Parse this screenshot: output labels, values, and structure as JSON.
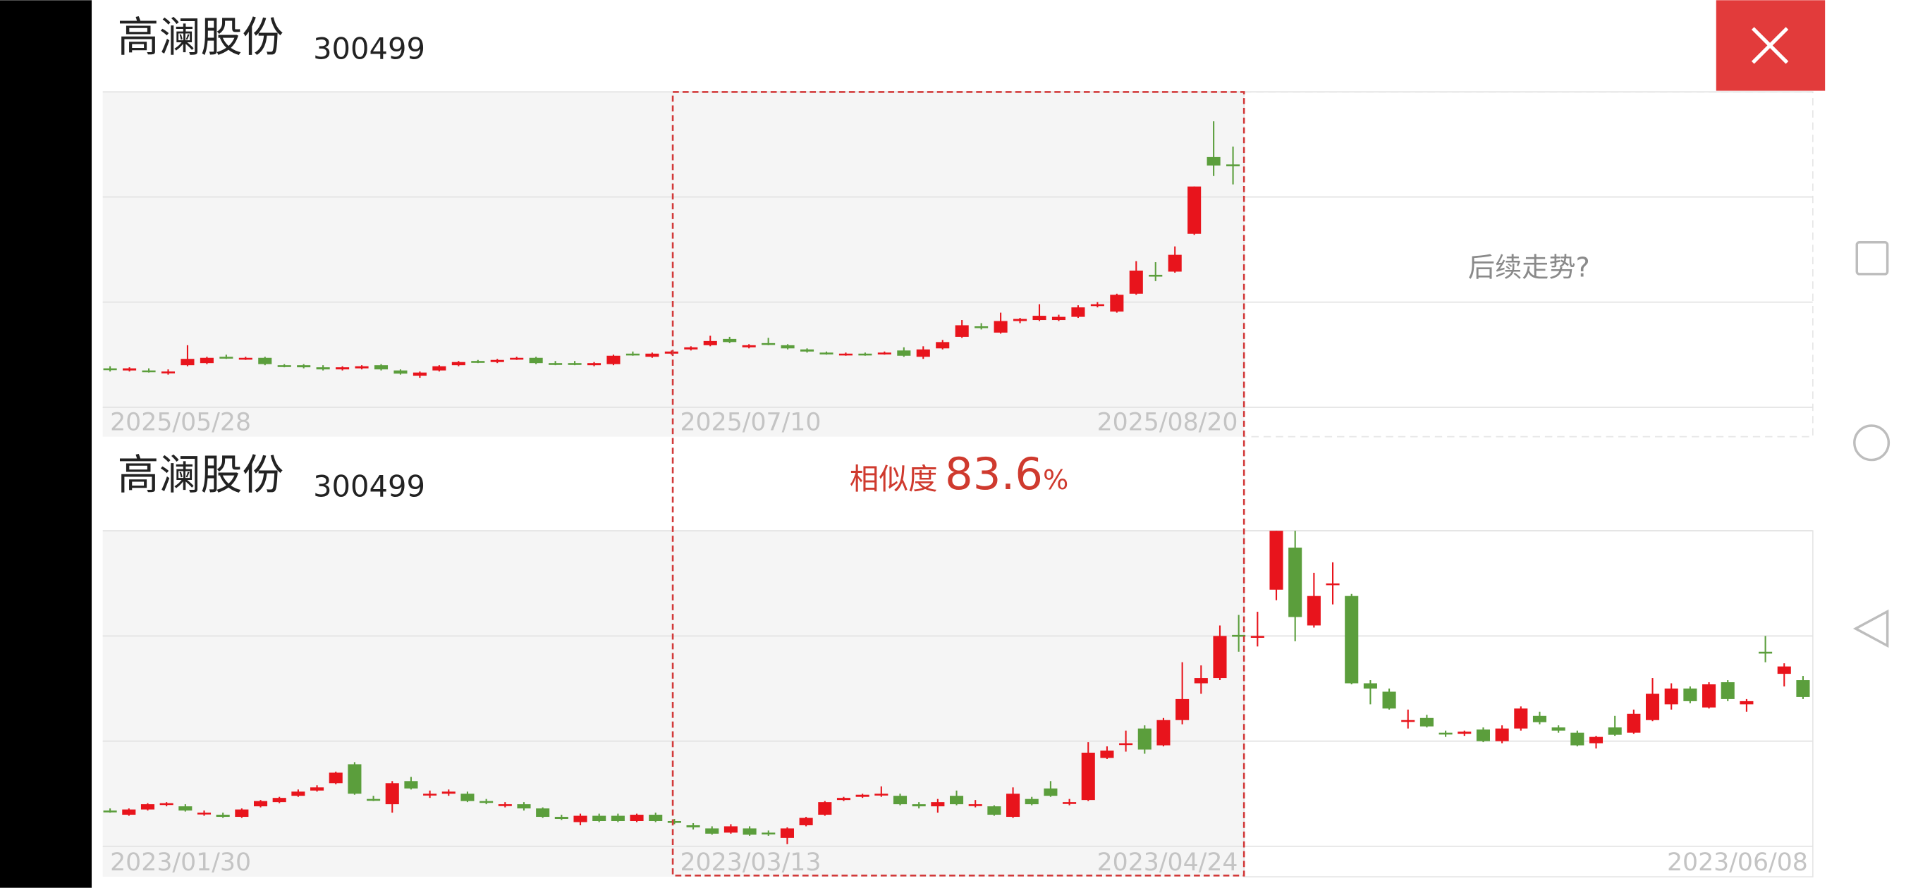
{
  "chart_data": [
    {
      "type": "candlestick",
      "title": "高澜股份",
      "subtitle": "300499",
      "x_labels": [
        "2025/05/28",
        "2025/07/10",
        "2025/08/20"
      ],
      "placeholder": "后续走势?",
      "ylim": [
        -0.28,
        3
      ],
      "grid_lines": [
        0,
        1,
        2,
        3
      ],
      "colors": {
        "up": "#e8141c",
        "down": "#5b9e3c"
      },
      "candles": [
        [
          0.37,
          0.39,
          0.34,
          0.36
        ],
        [
          0.35,
          0.38,
          0.34,
          0.37
        ],
        [
          0.35,
          0.37,
          0.33,
          0.34
        ],
        [
          0.33,
          0.36,
          0.31,
          0.34
        ],
        [
          0.4,
          0.59,
          0.39,
          0.46
        ],
        [
          0.42,
          0.48,
          0.41,
          0.47
        ],
        [
          0.48,
          0.5,
          0.46,
          0.48
        ],
        [
          0.46,
          0.48,
          0.45,
          0.47
        ],
        [
          0.47,
          0.48,
          0.4,
          0.41
        ],
        [
          0.4,
          0.41,
          0.38,
          0.39
        ],
        [
          0.4,
          0.41,
          0.37,
          0.38
        ],
        [
          0.38,
          0.4,
          0.35,
          0.36
        ],
        [
          0.36,
          0.39,
          0.35,
          0.38
        ],
        [
          0.37,
          0.4,
          0.36,
          0.39
        ],
        [
          0.4,
          0.41,
          0.35,
          0.36
        ],
        [
          0.35,
          0.36,
          0.31,
          0.32
        ],
        [
          0.3,
          0.34,
          0.28,
          0.33
        ],
        [
          0.35,
          0.4,
          0.34,
          0.39
        ],
        [
          0.4,
          0.44,
          0.39,
          0.43
        ],
        [
          0.44,
          0.45,
          0.42,
          0.43
        ],
        [
          0.43,
          0.46,
          0.42,
          0.45
        ],
        [
          0.46,
          0.48,
          0.45,
          0.47
        ],
        [
          0.47,
          0.48,
          0.41,
          0.42
        ],
        [
          0.42,
          0.44,
          0.4,
          0.41
        ],
        [
          0.42,
          0.44,
          0.4,
          0.41
        ],
        [
          0.4,
          0.43,
          0.39,
          0.42
        ],
        [
          0.41,
          0.5,
          0.4,
          0.49
        ],
        [
          0.51,
          0.53,
          0.49,
          0.5
        ],
        [
          0.48,
          0.52,
          0.47,
          0.51
        ],
        [
          0.51,
          0.54,
          0.5,
          0.53
        ],
        [
          0.55,
          0.58,
          0.54,
          0.57
        ],
        [
          0.59,
          0.68,
          0.58,
          0.63
        ],
        [
          0.65,
          0.67,
          0.61,
          0.62
        ],
        [
          0.57,
          0.6,
          0.56,
          0.59
        ],
        [
          0.61,
          0.66,
          0.59,
          0.6
        ],
        [
          0.59,
          0.6,
          0.55,
          0.56
        ],
        [
          0.55,
          0.56,
          0.52,
          0.53
        ],
        [
          0.52,
          0.53,
          0.5,
          0.51
        ],
        [
          0.5,
          0.52,
          0.49,
          0.51
        ],
        [
          0.51,
          0.52,
          0.49,
          0.5
        ],
        [
          0.51,
          0.53,
          0.5,
          0.52
        ],
        [
          0.54,
          0.57,
          0.48,
          0.49
        ],
        [
          0.48,
          0.58,
          0.46,
          0.55
        ],
        [
          0.56,
          0.64,
          0.55,
          0.62
        ],
        [
          0.67,
          0.83,
          0.66,
          0.78
        ],
        [
          0.77,
          0.8,
          0.74,
          0.76
        ],
        [
          0.71,
          0.9,
          0.7,
          0.82
        ],
        [
          0.82,
          0.85,
          0.8,
          0.84
        ],
        [
          0.83,
          0.98,
          0.82,
          0.87
        ],
        [
          0.83,
          0.88,
          0.82,
          0.86
        ],
        [
          0.86,
          0.97,
          0.85,
          0.95
        ],
        [
          0.97,
          1.0,
          0.95,
          0.98
        ],
        [
          0.91,
          1.08,
          0.9,
          1.07
        ],
        [
          1.08,
          1.39,
          1.07,
          1.3
        ],
        [
          1.26,
          1.38,
          1.2,
          1.25
        ],
        [
          1.29,
          1.53,
          1.28,
          1.45
        ],
        [
          1.65,
          2.1,
          1.64,
          2.1
        ],
        [
          2.38,
          2.72,
          2.2,
          2.3
        ],
        [
          2.31,
          2.48,
          2.12,
          2.3
        ]
      ]
    },
    {
      "type": "candlestick",
      "title": "高澜股份",
      "subtitle": "300499",
      "x_labels": [
        "2023/01/30",
        "2023/03/13",
        "2023/04/24",
        "2023/06/08"
      ],
      "ylim": [
        -0.29,
        3
      ],
      "grid_lines": [
        0,
        1,
        2,
        3
      ],
      "colors": {
        "up": "#e8141c",
        "down": "#5b9e3c"
      },
      "candles": [
        [
          0.34,
          0.36,
          0.32,
          0.33
        ],
        [
          0.3,
          0.36,
          0.29,
          0.35
        ],
        [
          0.35,
          0.41,
          0.34,
          0.4
        ],
        [
          0.4,
          0.42,
          0.38,
          0.41
        ],
        [
          0.38,
          0.4,
          0.33,
          0.34
        ],
        [
          0.31,
          0.34,
          0.29,
          0.32
        ],
        [
          0.3,
          0.32,
          0.27,
          0.28
        ],
        [
          0.28,
          0.36,
          0.27,
          0.35
        ],
        [
          0.38,
          0.44,
          0.37,
          0.43
        ],
        [
          0.42,
          0.47,
          0.41,
          0.46
        ],
        [
          0.48,
          0.54,
          0.47,
          0.52
        ],
        [
          0.53,
          0.58,
          0.52,
          0.56
        ],
        [
          0.6,
          0.71,
          0.59,
          0.7
        ],
        [
          0.78,
          0.8,
          0.49,
          0.5
        ],
        [
          0.45,
          0.48,
          0.43,
          0.44
        ],
        [
          0.4,
          0.62,
          0.32,
          0.6
        ],
        [
          0.62,
          0.66,
          0.54,
          0.55
        ],
        [
          0.49,
          0.53,
          0.46,
          0.5
        ],
        [
          0.5,
          0.54,
          0.48,
          0.52
        ],
        [
          0.5,
          0.52,
          0.42,
          0.43
        ],
        [
          0.43,
          0.45,
          0.4,
          0.42
        ],
        [
          0.39,
          0.42,
          0.37,
          0.4
        ],
        [
          0.4,
          0.42,
          0.34,
          0.36
        ],
        [
          0.36,
          0.37,
          0.27,
          0.28
        ],
        [
          0.28,
          0.3,
          0.25,
          0.26
        ],
        [
          0.23,
          0.31,
          0.2,
          0.29
        ],
        [
          0.29,
          0.31,
          0.23,
          0.24
        ],
        [
          0.29,
          0.31,
          0.23,
          0.24
        ],
        [
          0.24,
          0.31,
          0.23,
          0.3
        ],
        [
          0.3,
          0.32,
          0.23,
          0.24
        ],
        [
          0.24,
          0.26,
          0.21,
          0.23
        ],
        [
          0.2,
          0.22,
          0.16,
          0.18
        ],
        [
          0.17,
          0.19,
          0.11,
          0.12
        ],
        [
          0.13,
          0.21,
          0.12,
          0.19
        ],
        [
          0.17,
          0.19,
          0.1,
          0.11
        ],
        [
          0.13,
          0.15,
          0.1,
          0.12
        ],
        [
          0.08,
          0.18,
          0.02,
          0.17
        ],
        [
          0.2,
          0.28,
          0.19,
          0.27
        ],
        [
          0.3,
          0.43,
          0.29,
          0.42
        ],
        [
          0.44,
          0.47,
          0.43,
          0.46
        ],
        [
          0.47,
          0.5,
          0.46,
          0.49
        ],
        [
          0.49,
          0.57,
          0.47,
          0.5
        ],
        [
          0.48,
          0.5,
          0.39,
          0.4
        ],
        [
          0.4,
          0.42,
          0.36,
          0.38
        ],
        [
          0.38,
          0.45,
          0.32,
          0.42
        ],
        [
          0.48,
          0.53,
          0.39,
          0.4
        ],
        [
          0.39,
          0.44,
          0.37,
          0.4
        ],
        [
          0.38,
          0.39,
          0.29,
          0.3
        ],
        [
          0.28,
          0.56,
          0.27,
          0.5
        ],
        [
          0.45,
          0.47,
          0.39,
          0.4
        ],
        [
          0.55,
          0.62,
          0.47,
          0.48
        ],
        [
          0.41,
          0.45,
          0.39,
          0.42
        ],
        [
          0.44,
          0.99,
          0.43,
          0.89
        ],
        [
          0.84,
          0.95,
          0.83,
          0.91
        ],
        [
          0.97,
          1.1,
          0.9,
          0.98
        ],
        [
          1.12,
          1.15,
          0.88,
          0.92
        ],
        [
          0.96,
          1.22,
          0.95,
          1.2
        ],
        [
          1.2,
          1.75,
          1.16,
          1.4
        ],
        [
          1.55,
          1.72,
          1.45,
          1.6
        ],
        [
          1.6,
          2.1,
          1.58,
          2.0
        ],
        [
          2.01,
          2.2,
          1.85,
          2.0
        ],
        [
          1.99,
          2.23,
          1.9,
          2.0
        ],
        [
          2.44,
          3.0,
          2.34,
          3.0
        ],
        [
          2.84,
          3.0,
          1.95,
          2.18
        ],
        [
          2.1,
          2.6,
          2.08,
          2.38
        ],
        [
          2.49,
          2.7,
          2.3,
          2.5
        ],
        [
          2.38,
          2.4,
          1.54,
          1.55
        ],
        [
          1.55,
          1.58,
          1.35,
          1.5
        ],
        [
          1.47,
          1.5,
          1.3,
          1.31
        ],
        [
          1.19,
          1.3,
          1.12,
          1.2
        ],
        [
          1.22,
          1.25,
          1.13,
          1.14
        ],
        [
          1.08,
          1.1,
          1.04,
          1.07
        ],
        [
          1.07,
          1.1,
          1.05,
          1.09
        ],
        [
          1.11,
          1.13,
          0.99,
          1.0
        ],
        [
          1.0,
          1.15,
          0.98,
          1.12
        ],
        [
          1.12,
          1.33,
          1.1,
          1.31
        ],
        [
          1.24,
          1.28,
          1.16,
          1.18
        ],
        [
          1.13,
          1.15,
          1.08,
          1.1
        ],
        [
          1.08,
          1.1,
          0.95,
          0.96
        ],
        [
          0.98,
          1.05,
          0.93,
          1.04
        ],
        [
          1.13,
          1.24,
          1.05,
          1.06
        ],
        [
          1.08,
          1.3,
          1.07,
          1.26
        ],
        [
          1.2,
          1.6,
          1.19,
          1.45
        ],
        [
          1.35,
          1.55,
          1.3,
          1.5
        ],
        [
          1.5,
          1.52,
          1.36,
          1.38
        ],
        [
          1.32,
          1.56,
          1.31,
          1.54
        ],
        [
          1.56,
          1.58,
          1.38,
          1.4
        ],
        [
          1.35,
          1.4,
          1.28,
          1.38
        ],
        [
          1.85,
          2.0,
          1.75,
          1.84
        ],
        [
          1.64,
          1.74,
          1.52,
          1.71
        ],
        [
          1.58,
          1.62,
          1.4,
          1.42
        ]
      ]
    }
  ],
  "similarity": {
    "label": "相似度",
    "value": 83.6,
    "unit": "%"
  }
}
